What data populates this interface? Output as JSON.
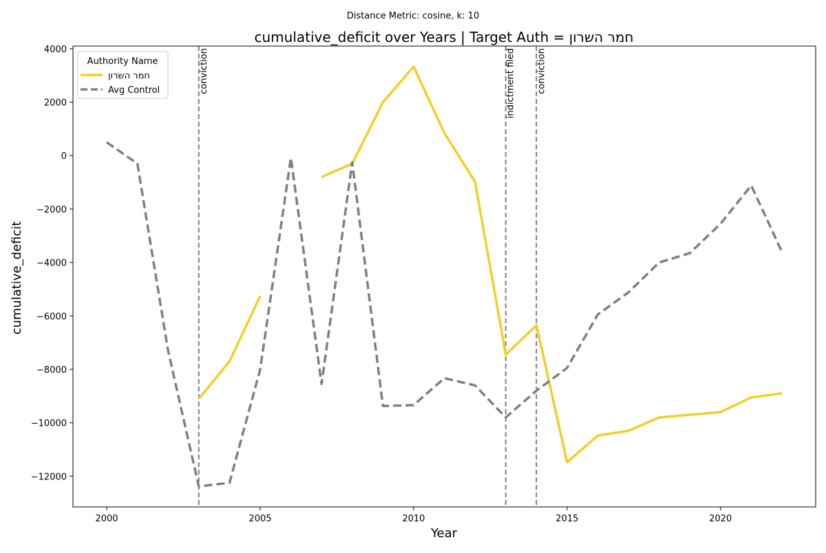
{
  "suptitle": "Distance Metric: cosine, k: 10",
  "chart_data": {
    "type": "line",
    "title": "cumulative_deficit over Years | Target Auth = חמר השרון",
    "xlabel": "Year",
    "ylabel": "cumulative_deficit",
    "xlim": [
      1998.9,
      2023.1
    ],
    "ylim": [
      -13150,
      4100
    ],
    "xticks": [
      2000,
      2005,
      2010,
      2015,
      2020
    ],
    "yticks": [
      -12000,
      -10000,
      -8000,
      -6000,
      -4000,
      -2000,
      0,
      2000,
      4000
    ],
    "xtick_labels": [
      "2000",
      "2005",
      "2010",
      "2015",
      "2020"
    ],
    "ytick_labels": [
      "−12000",
      "−10000",
      "−8000",
      "−6000",
      "−4000",
      "−2000",
      "0",
      "2000",
      "4000"
    ],
    "legend": {
      "title": "Authority Name",
      "position": "top-left",
      "entries": [
        "חמר השרון",
        "Avg Control"
      ]
    },
    "series": [
      {
        "name": "חמר השרון",
        "color": "#f2d024",
        "style": "solid",
        "points": [
          [
            2003,
            -9100
          ],
          [
            2004,
            -7700
          ],
          [
            2005,
            -5250
          ],
          [
            2006,
            null
          ],
          [
            2007,
            -800
          ],
          [
            2008,
            -300
          ],
          [
            2009,
            2000
          ],
          [
            2010,
            3330
          ],
          [
            2011,
            850
          ],
          [
            2012,
            -980
          ],
          [
            2013,
            -7450
          ],
          [
            2014,
            -6350
          ],
          [
            2015,
            -11480
          ],
          [
            2016,
            -10480
          ],
          [
            2017,
            -10300
          ],
          [
            2018,
            -9800
          ],
          [
            2019,
            -9700
          ],
          [
            2020,
            -9600
          ],
          [
            2021,
            -9050
          ],
          [
            2022,
            -8900
          ]
        ]
      },
      {
        "name": "Avg Control",
        "color": "#808080",
        "style": "dashed",
        "points": [
          [
            2000,
            500
          ],
          [
            2001,
            -300
          ],
          [
            2002,
            -7300
          ],
          [
            2003,
            -12380
          ],
          [
            2004,
            -12250
          ],
          [
            2005,
            -8000
          ],
          [
            2006,
            -80
          ],
          [
            2007,
            -8550
          ],
          [
            2008,
            -250
          ],
          [
            2009,
            -9370
          ],
          [
            2010,
            -9340
          ],
          [
            2011,
            -8330
          ],
          [
            2012,
            -8600
          ],
          [
            2013,
            -9800
          ],
          [
            2014,
            -8800
          ],
          [
            2015,
            -7950
          ],
          [
            2016,
            -5950
          ],
          [
            2017,
            -5120
          ],
          [
            2018,
            -4000
          ],
          [
            2019,
            -3650
          ],
          [
            2020,
            -2550
          ],
          [
            2021,
            -1120
          ],
          [
            2022,
            -3600
          ]
        ]
      }
    ],
    "events": [
      {
        "year": 2003,
        "label": "conviction"
      },
      {
        "year": 2013,
        "label": "indictment filed"
      },
      {
        "year": 2014,
        "label": "conviction"
      }
    ]
  }
}
